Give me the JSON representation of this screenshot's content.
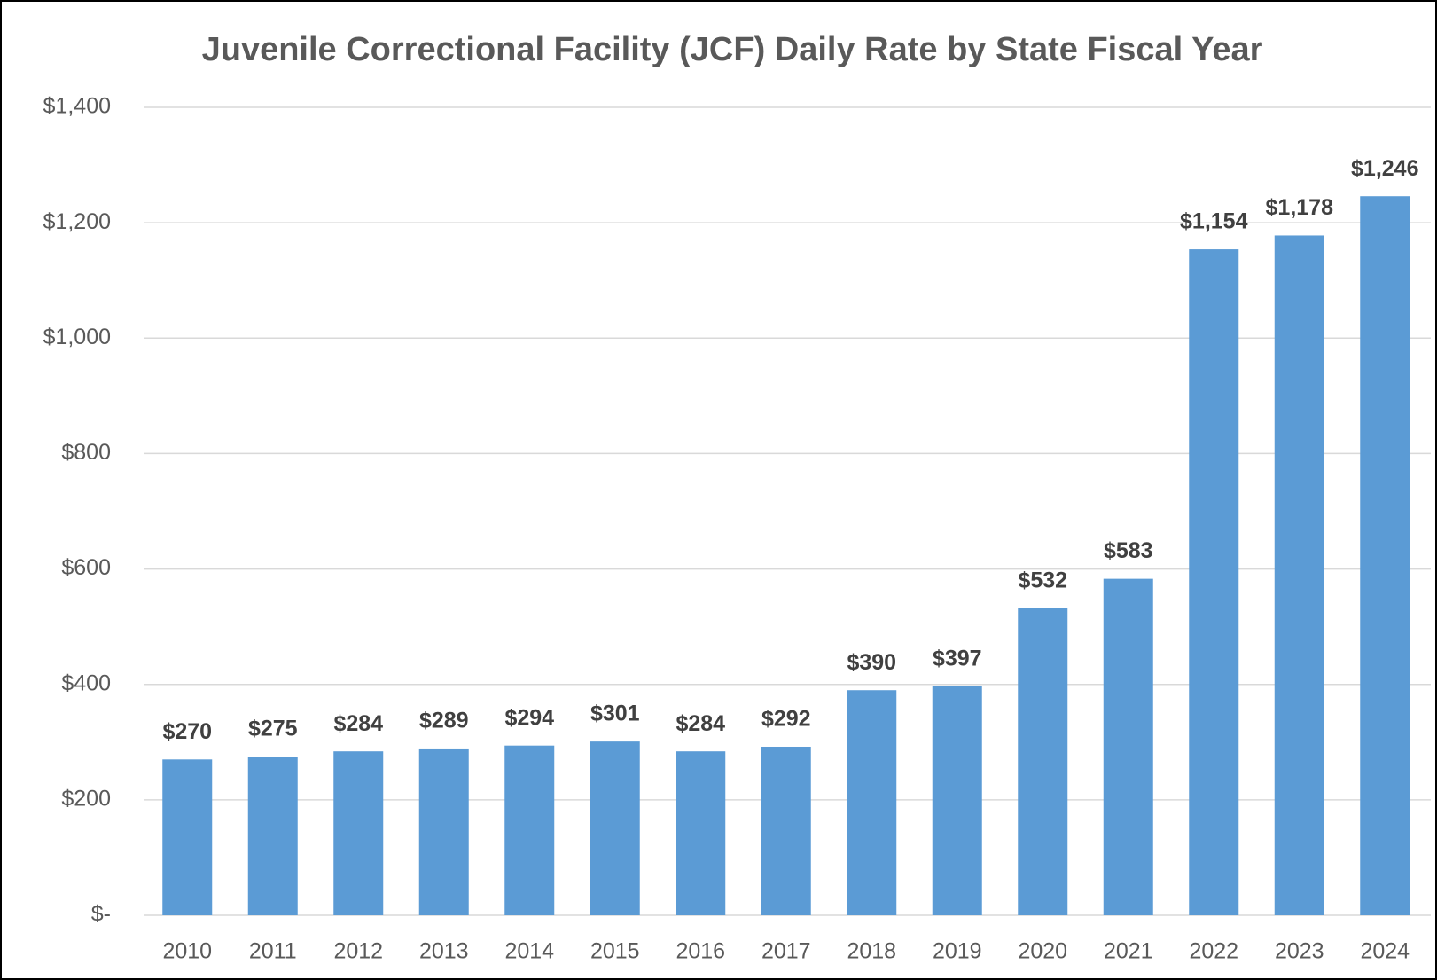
{
  "chart_data": {
    "type": "bar",
    "title": "Juvenile Correctional Facility (JCF) Daily Rate by State Fiscal Year",
    "categories": [
      "2010",
      "2011",
      "2012",
      "2013",
      "2014",
      "2015",
      "2016",
      "2017",
      "2018",
      "2019",
      "2020",
      "2021",
      "2022",
      "2023",
      "2024"
    ],
    "values": [
      270,
      275,
      284,
      289,
      294,
      301,
      284,
      292,
      390,
      397,
      532,
      583,
      1154,
      1178,
      1246
    ],
    "value_labels": [
      "$270",
      "$275",
      "$284",
      "$289",
      "$294",
      "$301",
      "$284",
      "$292",
      "$390",
      "$397",
      "$532",
      "$583",
      "$1,154",
      "$1,178",
      "$1,246"
    ],
    "color": "#5b9bd5",
    "ylim": [
      0,
      1400
    ],
    "yticks": [
      {
        "value": 0,
        "label": "$-"
      },
      {
        "value": 200,
        "label": "$200"
      },
      {
        "value": 400,
        "label": "$400"
      },
      {
        "value": 600,
        "label": "$600"
      },
      {
        "value": 800,
        "label": "$800"
      },
      {
        "value": 1000,
        "label": "$1,000"
      },
      {
        "value": 1200,
        "label": "$1,200"
      },
      {
        "value": 1400,
        "label": "$1,400"
      }
    ],
    "grid": true
  }
}
